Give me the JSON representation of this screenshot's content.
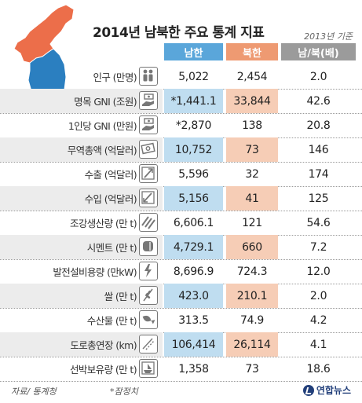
{
  "chart_data": {
    "type": "table",
    "title": "2014년 남북한 주요 통계 지표",
    "basis_note": "2013년 기준",
    "columns": {
      "south": "남한",
      "north": "북한",
      "ratio": "남/북(배)"
    },
    "colors": {
      "south_header": "#5aa6da",
      "north_header": "#ee9a72",
      "ratio_header": "#9b9b9b",
      "south_highlight": "#bfddf0",
      "north_highlight": "#f6cdb6",
      "map_north": "#ec6e4a",
      "map_south": "#2b7fc0"
    },
    "rows": [
      {
        "label": "인구 (만명)",
        "icon": "people-icon",
        "south": "5,022",
        "north": "2,454",
        "ratio": "2.0",
        "shaded": false,
        "highlight": false
      },
      {
        "label": "명목 GNI (조원)",
        "icon": "money-hand-icon",
        "south": "*1,441.1",
        "north": "33,844",
        "ratio": "42.6",
        "shaded": true,
        "highlight": true
      },
      {
        "label": "1인당 GNI (만원)",
        "icon": "money-hand-icon",
        "south": "*2,870",
        "north": "138",
        "ratio": "20.8",
        "shaded": false,
        "highlight": false
      },
      {
        "label": "무역총액 (억달러)",
        "icon": "banknote-icon",
        "south": "10,752",
        "north": "73",
        "ratio": "146",
        "shaded": true,
        "highlight": true
      },
      {
        "label": "수출 (억달러)",
        "icon": "export-icon",
        "south": "5,596",
        "north": "32",
        "ratio": "174",
        "shaded": false,
        "highlight": false
      },
      {
        "label": "수입 (억달러)",
        "icon": "import-icon",
        "south": "5,156",
        "north": "41",
        "ratio": "125",
        "shaded": true,
        "highlight": true
      },
      {
        "label": "조강생산량 (만 t)",
        "icon": "steel-bars-icon",
        "south": "6,606.1",
        "north": "121",
        "ratio": "54.6",
        "shaded": false,
        "highlight": false
      },
      {
        "label": "시멘트 (만 t)",
        "icon": "cement-icon",
        "south": "4,729.1",
        "north": "660",
        "ratio": "7.2",
        "shaded": true,
        "highlight": true
      },
      {
        "label": "발전설비용량 (만kW)",
        "icon": "power-icon",
        "south": "8,696.9",
        "north": "724.3",
        "ratio": "12.0",
        "shaded": false,
        "highlight": false
      },
      {
        "label": "쌀 (만 t)",
        "icon": "rice-icon",
        "south": "423.0",
        "north": "210.1",
        "ratio": "2.0",
        "shaded": true,
        "highlight": true
      },
      {
        "label": "수산물 (만 t)",
        "icon": "fish-icon",
        "south": "313.5",
        "north": "74.9",
        "ratio": "4.2",
        "shaded": false,
        "highlight": false
      },
      {
        "label": "도로총연장 (km)",
        "icon": "road-icon",
        "south": "106,414",
        "north": "26,114",
        "ratio": "4.1",
        "shaded": true,
        "highlight": true
      },
      {
        "label": "선박보유량 (만 t)",
        "icon": "ship-icon",
        "south": "1,358",
        "north": "73",
        "ratio": "18.6",
        "shaded": false,
        "highlight": false
      }
    ]
  },
  "footer": {
    "source": "자료/ 통계청",
    "note": "*잠정치",
    "brand": "연합뉴스"
  }
}
